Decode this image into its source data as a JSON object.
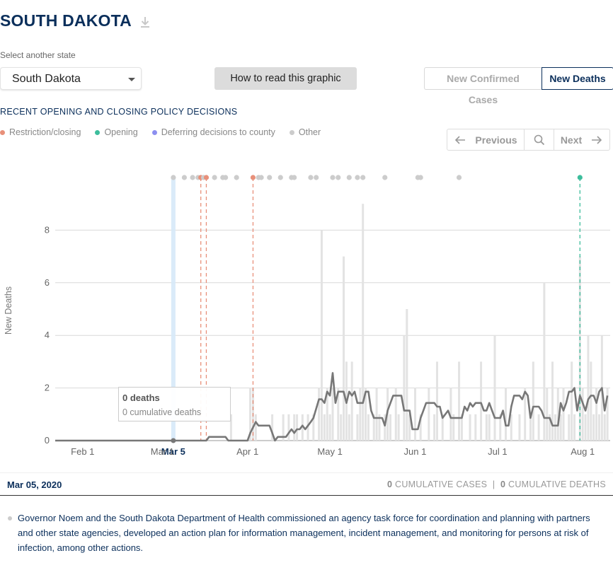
{
  "header": {
    "title": "SOUTH DAKOTA"
  },
  "state_select": {
    "label": "Select another state",
    "value": "South Dakota"
  },
  "howto_button": "How to read this graphic",
  "metric_toggle": {
    "cases": "New Confirmed Cases",
    "deaths": "New Deaths",
    "active": "deaths"
  },
  "policy": {
    "heading": "RECENT OPENING AND CLOSING POLICY DECISIONS",
    "legend": [
      {
        "label": "Restriction/closing",
        "color": "#e8907a"
      },
      {
        "label": "Opening",
        "color": "#3dbd9c"
      },
      {
        "label": "Deferring decisions to county",
        "color": "#8c8ff0"
      },
      {
        "label": "Other",
        "color": "#cccccc"
      }
    ]
  },
  "nav": {
    "previous": "Previous",
    "next": "Next"
  },
  "tooltip": {
    "title": "0 deaths",
    "subtitle": "0 cumulative deaths"
  },
  "selected": {
    "date": "Mar 05, 2020",
    "cases_value": "0",
    "cases_label": "CUMULATIVE CASES",
    "deaths_value": "0",
    "deaths_label": "CUMULATIVE DEATHS",
    "description": "Governor Noem and the South Dakota Department of Health commissioned an agency task force for coordination and planning with partners and other state agencies, developed an action plan for information management, incident management, and monitoring for persons at risk of infection, among other actions."
  },
  "chart_data": {
    "type": "bar",
    "ylabel": "New Deaths",
    "ylim": [
      0,
      10
    ],
    "yticks": [
      0,
      2,
      4,
      6,
      8
    ],
    "x_start": "2020-01-22",
    "x_end": "2020-08-11",
    "xticks": [
      {
        "label": "Feb 1",
        "date": "2020-02-01"
      },
      {
        "label": "Mar 1",
        "date": "2020-03-01"
      },
      {
        "label": "Apr 1",
        "date": "2020-04-01"
      },
      {
        "label": "May 1",
        "date": "2020-05-01"
      },
      {
        "label": "Jun 1",
        "date": "2020-06-01"
      },
      {
        "label": "Jul 1",
        "date": "2020-07-01"
      },
      {
        "label": "Aug 1",
        "date": "2020-08-01"
      }
    ],
    "highlight": {
      "label": "Mar 5",
      "date": "2020-03-05"
    },
    "daily_new_deaths": [
      {
        "date": "2020-03-10",
        "value": 0
      },
      {
        "date": "2020-03-26",
        "value": 1
      },
      {
        "date": "2020-04-02",
        "value": 2
      },
      {
        "date": "2020-04-03",
        "value": 2
      },
      {
        "date": "2020-04-04",
        "value": 1
      },
      {
        "date": "2020-04-10",
        "value": 1
      },
      {
        "date": "2020-04-14",
        "value": 1
      },
      {
        "date": "2020-04-16",
        "value": 1
      },
      {
        "date": "2020-04-18",
        "value": 1
      },
      {
        "date": "2020-04-19",
        "value": 1
      },
      {
        "date": "2020-04-21",
        "value": 1
      },
      {
        "date": "2020-04-23",
        "value": 1
      },
      {
        "date": "2020-04-25",
        "value": 1
      },
      {
        "date": "2020-04-27",
        "value": 2
      },
      {
        "date": "2020-04-28",
        "value": 8
      },
      {
        "date": "2020-04-29",
        "value": 1
      },
      {
        "date": "2020-04-30",
        "value": 2
      },
      {
        "date": "2020-05-01",
        "value": 1
      },
      {
        "date": "2020-05-02",
        "value": 2
      },
      {
        "date": "2020-05-04",
        "value": 2
      },
      {
        "date": "2020-05-05",
        "value": 1
      },
      {
        "date": "2020-05-06",
        "value": 7
      },
      {
        "date": "2020-05-07",
        "value": 3
      },
      {
        "date": "2020-05-08",
        "value": 1
      },
      {
        "date": "2020-05-09",
        "value": 3
      },
      {
        "date": "2020-05-11",
        "value": 1
      },
      {
        "date": "2020-05-12",
        "value": 2
      },
      {
        "date": "2020-05-13",
        "value": 9
      },
      {
        "date": "2020-05-14",
        "value": 2
      },
      {
        "date": "2020-05-15",
        "value": 1
      },
      {
        "date": "2020-05-17",
        "value": 1
      },
      {
        "date": "2020-05-18",
        "value": 2
      },
      {
        "date": "2020-05-19",
        "value": 1
      },
      {
        "date": "2020-05-21",
        "value": 1
      },
      {
        "date": "2020-05-22",
        "value": 2
      },
      {
        "date": "2020-05-23",
        "value": 1
      },
      {
        "date": "2020-05-25",
        "value": 2
      },
      {
        "date": "2020-05-26",
        "value": 1
      },
      {
        "date": "2020-05-28",
        "value": 4
      },
      {
        "date": "2020-05-29",
        "value": 5
      },
      {
        "date": "2020-05-30",
        "value": 1
      },
      {
        "date": "2020-06-01",
        "value": 2
      },
      {
        "date": "2020-06-03",
        "value": 1
      },
      {
        "date": "2020-06-06",
        "value": 2
      },
      {
        "date": "2020-06-08",
        "value": 1
      },
      {
        "date": "2020-06-09",
        "value": 3
      },
      {
        "date": "2020-06-11",
        "value": 1
      },
      {
        "date": "2020-06-14",
        "value": 2
      },
      {
        "date": "2020-06-15",
        "value": 1
      },
      {
        "date": "2020-06-17",
        "value": 3
      },
      {
        "date": "2020-06-18",
        "value": 1
      },
      {
        "date": "2020-06-21",
        "value": 1
      },
      {
        "date": "2020-06-23",
        "value": 1
      },
      {
        "date": "2020-06-25",
        "value": 3
      },
      {
        "date": "2020-06-27",
        "value": 1
      },
      {
        "date": "2020-06-28",
        "value": 1
      },
      {
        "date": "2020-06-30",
        "value": 4
      },
      {
        "date": "2020-07-02",
        "value": 1
      },
      {
        "date": "2020-07-04",
        "value": 2
      },
      {
        "date": "2020-07-06",
        "value": 1
      },
      {
        "date": "2020-07-09",
        "value": 1
      },
      {
        "date": "2020-07-11",
        "value": 2
      },
      {
        "date": "2020-07-13",
        "value": 1
      },
      {
        "date": "2020-07-14",
        "value": 3
      },
      {
        "date": "2020-07-16",
        "value": 1
      },
      {
        "date": "2020-07-18",
        "value": 6
      },
      {
        "date": "2020-07-19",
        "value": 2
      },
      {
        "date": "2020-07-20",
        "value": 1
      },
      {
        "date": "2020-07-21",
        "value": 3
      },
      {
        "date": "2020-07-22",
        "value": 1
      },
      {
        "date": "2020-07-23",
        "value": 2
      },
      {
        "date": "2020-07-24",
        "value": 1
      },
      {
        "date": "2020-07-25",
        "value": 2
      },
      {
        "date": "2020-07-27",
        "value": 1
      },
      {
        "date": "2020-07-28",
        "value": 3
      },
      {
        "date": "2020-07-29",
        "value": 1
      },
      {
        "date": "2020-07-31",
        "value": 7
      },
      {
        "date": "2020-08-01",
        "value": 2
      },
      {
        "date": "2020-08-02",
        "value": 1
      },
      {
        "date": "2020-08-03",
        "value": 4
      },
      {
        "date": "2020-08-04",
        "value": 3
      },
      {
        "date": "2020-08-05",
        "value": 1
      },
      {
        "date": "2020-08-06",
        "value": 2
      },
      {
        "date": "2020-08-07",
        "value": 1
      },
      {
        "date": "2020-08-08",
        "value": 4
      },
      {
        "date": "2020-08-09",
        "value": 1
      },
      {
        "date": "2020-08-10",
        "value": 2
      }
    ],
    "seven_day_average": [
      {
        "date": "2020-01-22",
        "value": 0
      },
      {
        "date": "2020-03-17",
        "value": 0
      },
      {
        "date": "2020-03-18",
        "value": 0.14
      },
      {
        "date": "2020-03-24",
        "value": 0.14
      },
      {
        "date": "2020-03-25",
        "value": 0
      },
      {
        "date": "2020-04-01",
        "value": 0
      },
      {
        "date": "2020-04-02",
        "value": 0.29
      },
      {
        "date": "2020-04-04",
        "value": 0.71
      },
      {
        "date": "2020-04-05",
        "value": 0.57
      },
      {
        "date": "2020-04-09",
        "value": 0.57
      },
      {
        "date": "2020-04-10",
        "value": 0.29
      },
      {
        "date": "2020-04-11",
        "value": 0
      },
      {
        "date": "2020-04-12",
        "value": 0.14
      },
      {
        "date": "2020-04-15",
        "value": 0.14
      },
      {
        "date": "2020-04-16",
        "value": 0.29
      },
      {
        "date": "2020-04-17",
        "value": 0.43
      },
      {
        "date": "2020-04-18",
        "value": 0.29
      },
      {
        "date": "2020-04-19",
        "value": 0.43
      },
      {
        "date": "2020-04-20",
        "value": 0.43
      },
      {
        "date": "2020-04-21",
        "value": 0.57
      },
      {
        "date": "2020-04-22",
        "value": 0.43
      },
      {
        "date": "2020-04-23",
        "value": 0.57
      },
      {
        "date": "2020-04-24",
        "value": 0.71
      },
      {
        "date": "2020-04-25",
        "value": 0.86
      },
      {
        "date": "2020-04-27",
        "value": 1.57
      },
      {
        "date": "2020-04-28",
        "value": 1.57
      },
      {
        "date": "2020-04-29",
        "value": 1.43
      },
      {
        "date": "2020-04-30",
        "value": 1.86
      },
      {
        "date": "2020-05-01",
        "value": 1.71
      },
      {
        "date": "2020-05-02",
        "value": 2.57
      },
      {
        "date": "2020-05-03",
        "value": 1.43
      },
      {
        "date": "2020-05-04",
        "value": 1.86
      },
      {
        "date": "2020-05-06",
        "value": 1.86
      },
      {
        "date": "2020-05-07",
        "value": 1.43
      },
      {
        "date": "2020-05-08",
        "value": 1.86
      },
      {
        "date": "2020-05-09",
        "value": 1.71
      },
      {
        "date": "2020-05-10",
        "value": 1.86
      },
      {
        "date": "2020-05-11",
        "value": 1.43
      },
      {
        "date": "2020-05-13",
        "value": 1.43
      },
      {
        "date": "2020-05-14",
        "value": 1.86
      },
      {
        "date": "2020-05-15",
        "value": 1.86
      },
      {
        "date": "2020-05-16",
        "value": 1.14
      },
      {
        "date": "2020-05-17",
        "value": 0.86
      },
      {
        "date": "2020-05-18",
        "value": 0.86
      },
      {
        "date": "2020-05-20",
        "value": 0.86
      },
      {
        "date": "2020-05-21",
        "value": 0.57
      },
      {
        "date": "2020-05-22",
        "value": 1.14
      },
      {
        "date": "2020-05-24",
        "value": 1.71
      },
      {
        "date": "2020-05-27",
        "value": 1.71
      },
      {
        "date": "2020-05-28",
        "value": 1.14
      },
      {
        "date": "2020-05-30",
        "value": 1.14
      },
      {
        "date": "2020-05-31",
        "value": 0.43
      },
      {
        "date": "2020-06-02",
        "value": 0.43
      },
      {
        "date": "2020-06-03",
        "value": 0.86
      },
      {
        "date": "2020-06-04",
        "value": 1.14
      },
      {
        "date": "2020-06-05",
        "value": 1.43
      },
      {
        "date": "2020-06-08",
        "value": 1.43
      },
      {
        "date": "2020-06-09",
        "value": 1.29
      },
      {
        "date": "2020-06-10",
        "value": 1.29
      },
      {
        "date": "2020-06-11",
        "value": 0.86
      },
      {
        "date": "2020-06-13",
        "value": 1.14
      },
      {
        "date": "2020-06-14",
        "value": 0.86
      },
      {
        "date": "2020-06-18",
        "value": 0.86
      },
      {
        "date": "2020-06-19",
        "value": 1.29
      },
      {
        "date": "2020-06-20",
        "value": 1.14
      },
      {
        "date": "2020-06-21",
        "value": 1.43
      },
      {
        "date": "2020-06-22",
        "value": 1.29
      },
      {
        "date": "2020-06-23",
        "value": 1.43
      },
      {
        "date": "2020-06-25",
        "value": 1.43
      },
      {
        "date": "2020-06-26",
        "value": 1.14
      },
      {
        "date": "2020-06-27",
        "value": 1.14
      },
      {
        "date": "2020-06-28",
        "value": 1.43
      },
      {
        "date": "2020-06-29",
        "value": 1.14
      },
      {
        "date": "2020-06-30",
        "value": 0.86
      },
      {
        "date": "2020-07-02",
        "value": 0.86
      },
      {
        "date": "2020-07-03",
        "value": 1.14
      },
      {
        "date": "2020-07-04",
        "value": 0.57
      },
      {
        "date": "2020-07-05",
        "value": 0.57
      },
      {
        "date": "2020-07-06",
        "value": 1.29
      },
      {
        "date": "2020-07-07",
        "value": 1.71
      },
      {
        "date": "2020-07-09",
        "value": 1.71
      },
      {
        "date": "2020-07-10",
        "value": 1.57
      },
      {
        "date": "2020-07-11",
        "value": 1.86
      },
      {
        "date": "2020-07-12",
        "value": 1.71
      },
      {
        "date": "2020-07-13",
        "value": 0.86
      },
      {
        "date": "2020-07-14",
        "value": 1.29
      },
      {
        "date": "2020-07-16",
        "value": 1.29
      },
      {
        "date": "2020-07-17",
        "value": 1.14
      },
      {
        "date": "2020-07-18",
        "value": 0.86
      },
      {
        "date": "2020-07-20",
        "value": 0.86
      },
      {
        "date": "2020-07-21",
        "value": 0.57
      },
      {
        "date": "2020-07-23",
        "value": 0.57
      },
      {
        "date": "2020-07-24",
        "value": 1.43
      },
      {
        "date": "2020-07-25",
        "value": 1.14
      },
      {
        "date": "2020-07-26",
        "value": 1.43
      },
      {
        "date": "2020-07-27",
        "value": 1.86
      },
      {
        "date": "2020-07-28",
        "value": 1.86
      },
      {
        "date": "2020-07-29",
        "value": 2.0
      },
      {
        "date": "2020-07-30",
        "value": 1.14
      },
      {
        "date": "2020-07-31",
        "value": 1.71
      },
      {
        "date": "2020-08-01",
        "value": 1.43
      },
      {
        "date": "2020-08-02",
        "value": 1.14
      },
      {
        "date": "2020-08-03",
        "value": 1.57
      },
      {
        "date": "2020-08-04",
        "value": 1.71
      },
      {
        "date": "2020-08-05",
        "value": 1.71
      },
      {
        "date": "2020-08-06",
        "value": 1.43
      },
      {
        "date": "2020-08-07",
        "value": 1.86
      },
      {
        "date": "2020-08-08",
        "value": 2.0
      },
      {
        "date": "2020-08-09",
        "value": 1.14
      },
      {
        "date": "2020-08-10",
        "value": 1.71
      }
    ],
    "policy_events": [
      {
        "date": "2020-03-05",
        "type": "Other"
      },
      {
        "date": "2020-03-09",
        "type": "Other"
      },
      {
        "date": "2020-03-12",
        "type": "Other"
      },
      {
        "date": "2020-03-14",
        "type": "Other"
      },
      {
        "date": "2020-03-15",
        "type": "Restriction/closing"
      },
      {
        "date": "2020-03-16",
        "type": "Other"
      },
      {
        "date": "2020-03-17",
        "type": "Restriction/closing"
      },
      {
        "date": "2020-03-20",
        "type": "Other"
      },
      {
        "date": "2020-03-23",
        "type": "Other"
      },
      {
        "date": "2020-03-24",
        "type": "Other"
      },
      {
        "date": "2020-03-28",
        "type": "Other"
      },
      {
        "date": "2020-04-03",
        "type": "Restriction/closing"
      },
      {
        "date": "2020-04-05",
        "type": "Other"
      },
      {
        "date": "2020-04-06",
        "type": "Other"
      },
      {
        "date": "2020-04-09",
        "type": "Other"
      },
      {
        "date": "2020-04-13",
        "type": "Other"
      },
      {
        "date": "2020-04-17",
        "type": "Other"
      },
      {
        "date": "2020-04-18",
        "type": "Other"
      },
      {
        "date": "2020-04-24",
        "type": "Other"
      },
      {
        "date": "2020-04-26",
        "type": "Other"
      },
      {
        "date": "2020-05-02",
        "type": "Other"
      },
      {
        "date": "2020-05-04",
        "type": "Other"
      },
      {
        "date": "2020-05-08",
        "type": "Other"
      },
      {
        "date": "2020-05-11",
        "type": "Other"
      },
      {
        "date": "2020-05-13",
        "type": "Other"
      },
      {
        "date": "2020-05-21",
        "type": "Other"
      },
      {
        "date": "2020-06-02",
        "type": "Other"
      },
      {
        "date": "2020-06-03",
        "type": "Other"
      },
      {
        "date": "2020-06-17",
        "type": "Other"
      },
      {
        "date": "2020-07-31",
        "type": "Opening"
      }
    ]
  }
}
